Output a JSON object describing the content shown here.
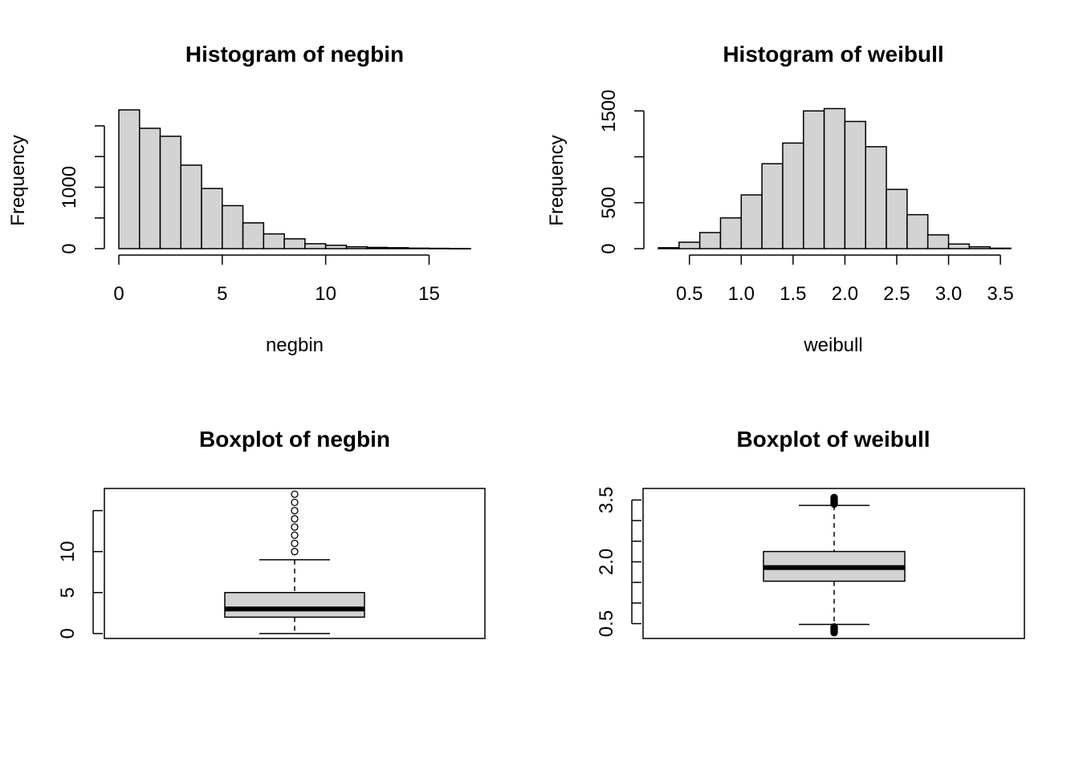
{
  "chart_data": [
    {
      "id": "hist_negbin",
      "type": "bar",
      "subtype": "histogram",
      "title": "Histogram of negbin",
      "xlabel": "negbin",
      "ylabel": "Frequency",
      "xlim": [
        0,
        17
      ],
      "ylim": [
        0,
        2260
      ],
      "x_ticks": [
        0,
        5,
        10,
        15
      ],
      "x_tick_labels": [
        "0",
        "5",
        "10",
        "15"
      ],
      "y_ticks": [
        0,
        500,
        1000,
        1500,
        2000
      ],
      "y_tick_labels": [
        "0",
        "",
        "1000",
        "",
        ""
      ],
      "bin_edges": [
        0,
        1,
        2,
        3,
        4,
        5,
        6,
        7,
        8,
        9,
        10,
        11,
        12,
        13,
        14,
        15,
        16,
        17
      ],
      "values": [
        2260,
        1960,
        1830,
        1360,
        980,
        700,
        420,
        240,
        160,
        80,
        55,
        30,
        20,
        15,
        8,
        5,
        3
      ],
      "fill_color": "#d3d3d3",
      "grid": false
    },
    {
      "id": "hist_weibull",
      "type": "bar",
      "subtype": "histogram",
      "title": "Histogram of weibull",
      "xlabel": "weibull",
      "ylabel": "Frequency",
      "xlim": [
        0.2,
        3.6
      ],
      "ylim": [
        0,
        1520
      ],
      "x_ticks": [
        0.5,
        1.0,
        1.5,
        2.0,
        2.5,
        3.0,
        3.5
      ],
      "x_tick_labels": [
        "0.5",
        "1.0",
        "1.5",
        "2.0",
        "2.5",
        "3.0",
        "3.5"
      ],
      "y_ticks": [
        0,
        500,
        1000,
        1500
      ],
      "y_tick_labels": [
        "0",
        "500",
        "",
        "1500"
      ],
      "bin_edges": [
        0.2,
        0.4,
        0.6,
        0.8,
        1.0,
        1.2,
        1.4,
        1.6,
        1.8,
        2.0,
        2.2,
        2.4,
        2.6,
        2.8,
        3.0,
        3.2,
        3.4,
        3.6
      ],
      "values": [
        10,
        70,
        175,
        335,
        585,
        925,
        1150,
        1500,
        1525,
        1385,
        1110,
        645,
        370,
        150,
        50,
        20,
        5
      ],
      "fill_color": "#d3d3d3",
      "grid": false
    },
    {
      "id": "box_negbin",
      "type": "boxplot",
      "title": "Boxplot of negbin",
      "ylim": [
        -0.6,
        17.7
      ],
      "y_ticks": [
        0,
        5,
        10,
        15
      ],
      "y_tick_labels": [
        "0",
        "5",
        "10",
        ""
      ],
      "stats": {
        "whisker_low": 0,
        "q1": 2,
        "median": 3,
        "q3": 5,
        "whisker_high": 9
      },
      "outliers": [
        10,
        11,
        12,
        13,
        14,
        15,
        16,
        17
      ],
      "fill_color": "#d3d3d3"
    },
    {
      "id": "box_weibull",
      "type": "boxplot",
      "title": "Boxplot of weibull",
      "ylim": [
        0.14,
        3.78
      ],
      "y_ticks": [
        0.5,
        1.0,
        1.5,
        2.0,
        2.5,
        3.0,
        3.5
      ],
      "y_tick_labels": [
        "0.5",
        "",
        "",
        "2.0",
        "",
        "",
        "3.5"
      ],
      "stats": {
        "whisker_low": 0.48,
        "q1": 1.53,
        "median": 1.86,
        "q3": 2.25,
        "whisker_high": 3.37
      },
      "outliers": [
        0.28,
        0.3,
        0.32,
        0.34,
        0.36,
        0.38,
        0.4,
        0.42,
        3.4,
        3.42,
        3.44,
        3.46,
        3.48,
        3.5,
        3.52,
        3.54,
        3.56
      ],
      "fill_color": "#d3d3d3"
    }
  ]
}
